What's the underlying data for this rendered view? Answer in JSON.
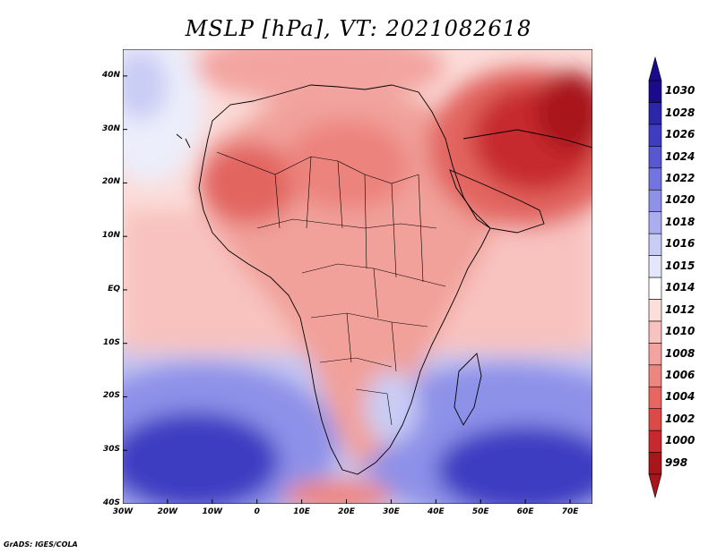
{
  "title": "MSLP [hPa], VT: 2021082618",
  "credit": "GrADS: IGES/COLA",
  "map": {
    "lon_range": [
      -30,
      75
    ],
    "lat_range": [
      -40,
      45
    ],
    "lat_ticks": [
      {
        "value": 40,
        "label": "40N"
      },
      {
        "value": 30,
        "label": "30N"
      },
      {
        "value": 20,
        "label": "20N"
      },
      {
        "value": 10,
        "label": "10N"
      },
      {
        "value": 0,
        "label": "EQ"
      },
      {
        "value": -10,
        "label": "10S"
      },
      {
        "value": -20,
        "label": "20S"
      },
      {
        "value": -30,
        "label": "30S"
      },
      {
        "value": -40,
        "label": "40S"
      }
    ],
    "lon_ticks": [
      {
        "value": -30,
        "label": "30W"
      },
      {
        "value": -20,
        "label": "20W"
      },
      {
        "value": -10,
        "label": "10W"
      },
      {
        "value": 0,
        "label": "0"
      },
      {
        "value": 10,
        "label": "10E"
      },
      {
        "value": 20,
        "label": "20E"
      },
      {
        "value": 30,
        "label": "30E"
      },
      {
        "value": 40,
        "label": "40E"
      },
      {
        "value": 50,
        "label": "50E"
      },
      {
        "value": 60,
        "label": "60E"
      },
      {
        "value": 70,
        "label": "70E"
      }
    ]
  },
  "chart_data": {
    "type": "heatmap",
    "title": "MSLP [hPa], VT: 2021082618",
    "variable": "MSLP",
    "units": "hPa",
    "valid_time": "2021082618",
    "colorbar": {
      "levels": [
        "998",
        "1000",
        "1002",
        "1004",
        "1006",
        "1008",
        "1010",
        "1012",
        "1014",
        "1015",
        "1016",
        "1018",
        "1020",
        "1022",
        "1024",
        "1026",
        "1028",
        "1030"
      ],
      "colors": [
        "#a8161b",
        "#c72a2e",
        "#dc4a48",
        "#e76661",
        "#ee8680",
        "#f3a4a0",
        "#f8c2bf",
        "#fcdedb",
        "#ffffff",
        "#e4e6fb",
        "#c9ccf4",
        "#aaaeef",
        "#8e91e8",
        "#7274df",
        "#5757d2",
        "#3e3dc2",
        "#2b27ab",
        "#1a0a8c"
      ]
    }
  }
}
